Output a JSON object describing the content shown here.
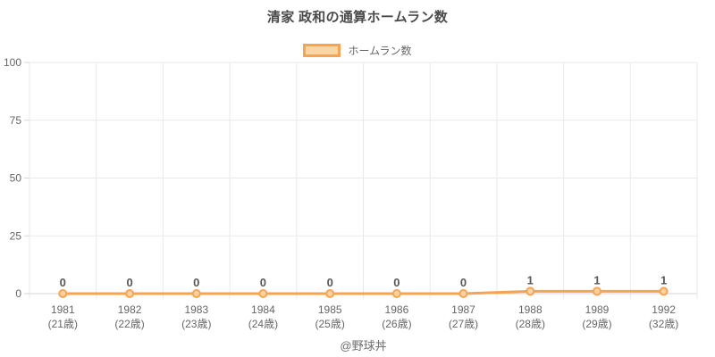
{
  "chart_data": {
    "type": "line",
    "title": "清家 政和の通算ホームラン数",
    "categories": [
      "1981",
      "1982",
      "1983",
      "1984",
      "1985",
      "1986",
      "1987",
      "1988",
      "1989",
      "1992"
    ],
    "category_sublabels": [
      "(21歳)",
      "(22歳)",
      "(23歳)",
      "(24歳)",
      "(25歳)",
      "(26歳)",
      "(27歳)",
      "(28歳)",
      "(29歳)",
      "(32歳)"
    ],
    "series": [
      {
        "name": "ホームラン数",
        "values": [
          0,
          0,
          0,
          0,
          0,
          0,
          0,
          1,
          1,
          1
        ]
      }
    ],
    "xlabel": "",
    "ylabel": "",
    "ylim": [
      0,
      100
    ],
    "yticks": [
      0,
      25,
      50,
      75,
      100
    ],
    "legend_position": "top",
    "grid": true
  },
  "footer": "@野球丼",
  "colors": {
    "line": "#f7a350",
    "point_fill": "#fcd3a4",
    "legend_swatch_fill": "#fbd6a5",
    "grid": "#e9e9e9",
    "axis": "#d6d6d6",
    "tick_text": "#666666",
    "value_text": "#58585a",
    "title_text": "#4a4a4a",
    "footer_text": "#6e6e6e",
    "background": "#ffffff"
  }
}
